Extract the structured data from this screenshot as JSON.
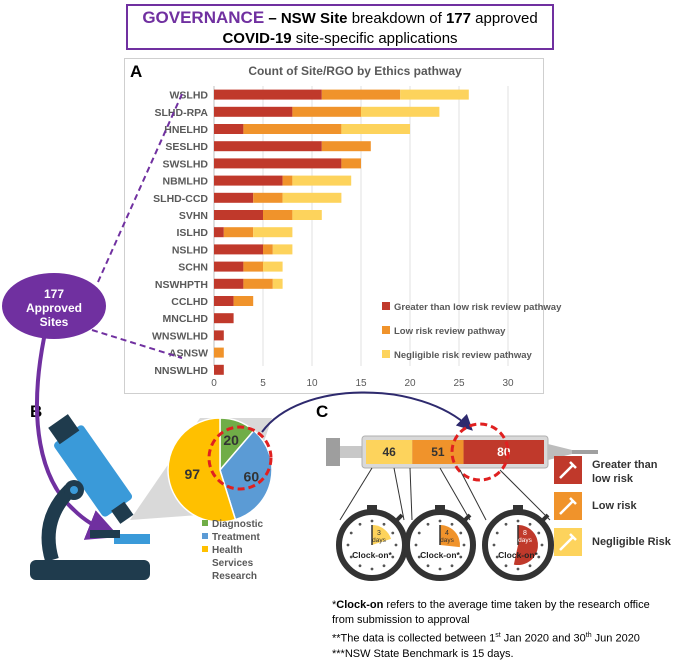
{
  "banner": {
    "part1": "GOVERNANCE",
    "part2": " – NSW ",
    "part3": "Site",
    "part4": " breakdown of ",
    "part5": "177",
    "part6": " approved",
    "part7": "COVID-19",
    "part8": " site-specific applications"
  },
  "section_labels": {
    "a": "A",
    "b": "B",
    "c": "C"
  },
  "bubble": {
    "line1": "177",
    "line2": "Approved",
    "line3": "Sites"
  },
  "colors": {
    "greater": "#c0392b",
    "low": "#f0932b",
    "negligible": "#fdd35c",
    "diagnostic": "#70ad47",
    "treatment": "#5b9bd5",
    "hsr": "#ffc000",
    "purple": "#7030a0"
  },
  "chart_data": [
    {
      "type": "bar",
      "orientation": "horizontal",
      "stacked": true,
      "title": "Count of Site/RGO by Ethics pathway",
      "categories": [
        "WSLHD",
        "SLHD-RPA",
        "HNELHD",
        "SESLHD",
        "SWSLHD",
        "NBMLHD",
        "SLHD-CCD",
        "SVHN",
        "ISLHD",
        "NSLHD",
        "SCHN",
        "NSWHPTH",
        "CCLHD",
        "MNCLHD",
        "WNSWLHD",
        "ASNSW",
        "NNSWLHD"
      ],
      "series": [
        {
          "name": "Greater than low risk review pathway",
          "values": [
            11,
            8,
            3,
            11,
            13,
            7,
            4,
            5,
            1,
            5,
            3,
            3,
            2,
            2,
            1,
            0,
            1
          ]
        },
        {
          "name": "Low risk review pathway",
          "values": [
            8,
            7,
            10,
            5,
            2,
            1,
            3,
            3,
            3,
            1,
            2,
            3,
            2,
            0,
            0,
            1,
            0
          ]
        },
        {
          "name": "Negligible risk review pathway",
          "values": [
            7,
            8,
            7,
            0,
            0,
            6,
            6,
            3,
            4,
            2,
            2,
            1,
            0,
            0,
            0,
            0,
            0
          ]
        }
      ],
      "xticks": [
        "0",
        "5",
        "10",
        "15",
        "20",
        "25",
        "30"
      ],
      "xlim": [
        0,
        30
      ],
      "legend": "bottom-right"
    },
    {
      "type": "pie",
      "values": [
        20,
        60,
        97
      ],
      "labels": [
        "Diagnostic",
        "Treatment",
        "Health Services Research"
      ],
      "legend_lines": [
        "Diagnostic",
        "Treatment",
        "Health",
        "Services",
        "Research"
      ],
      "legend": "bottom"
    },
    {
      "type": "bar",
      "orientation": "horizontal",
      "stacked": true,
      "values": [
        46,
        51,
        80
      ],
      "labels": [
        "Negligible Risk",
        "Low risk",
        "Greater than low risk"
      ],
      "legend_lines": [
        "Greater than",
        "low risk",
        "Low risk",
        "Negligible Risk"
      ],
      "clock_days": [
        "3",
        "4",
        "8"
      ],
      "days_label": "days",
      "clock_label": "Clock-on*",
      "legend": "right"
    }
  ],
  "footnotes": {
    "l1a": "*",
    "l1b": "Clock-on",
    "l1c": " refers to the average time taken by the research office",
    "l2": "from submission to approval",
    "l3a": "**The data is collected between 1",
    "l3b": "st",
    "l3c": " Jan 2020 and 30",
    "l3d": "th",
    "l3e": " Jun 2020",
    "l4": "***NSW State Benchmark is 15 days."
  }
}
